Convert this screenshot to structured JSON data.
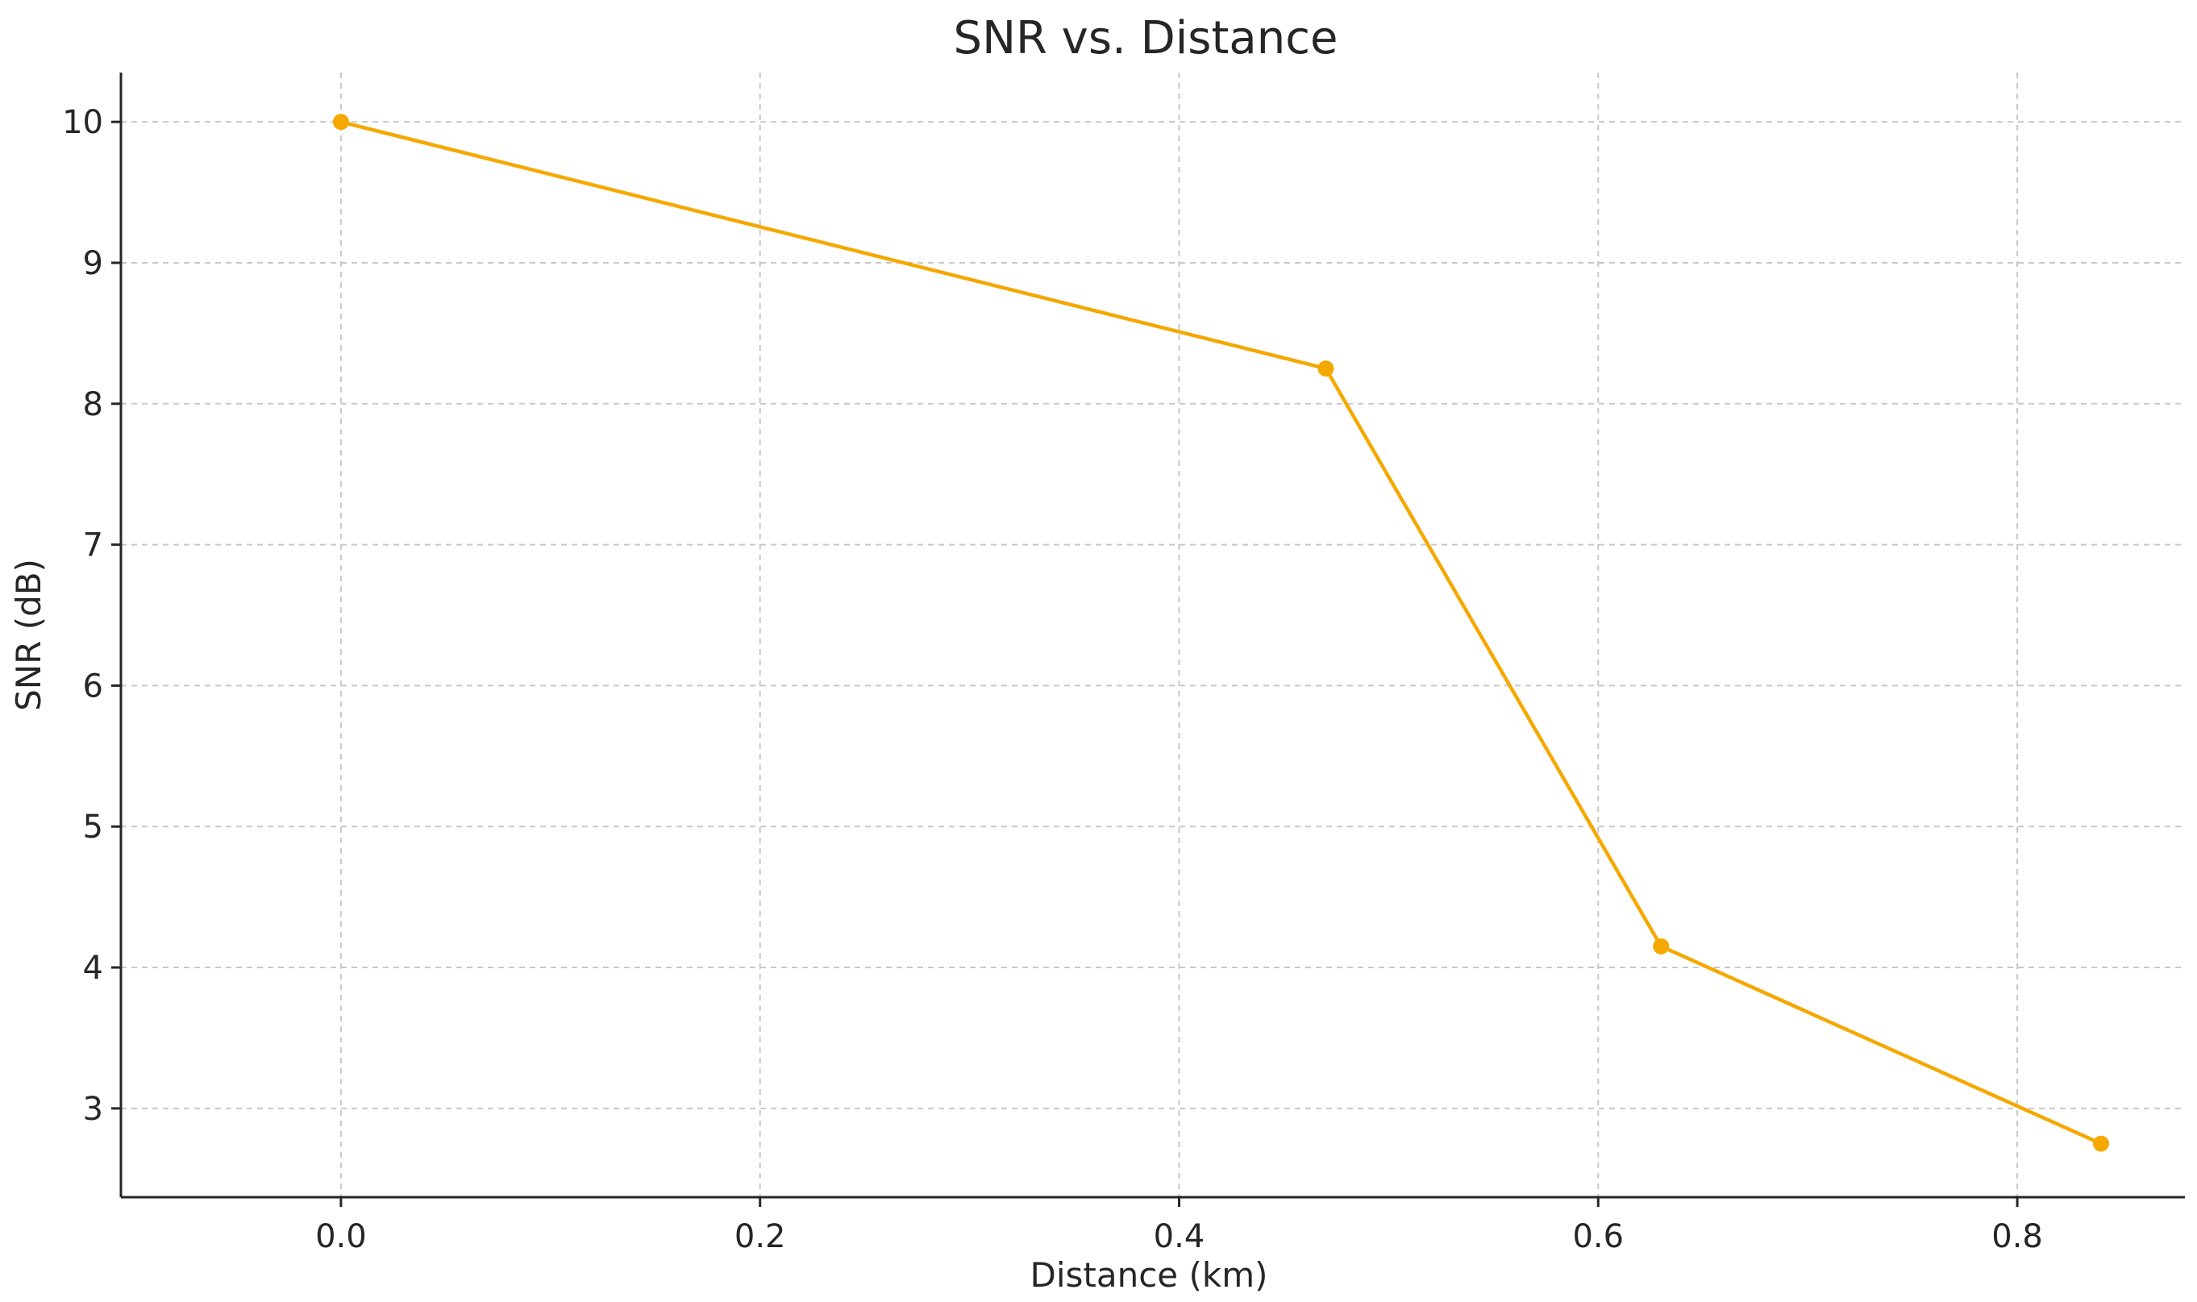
{
  "chart_data": {
    "type": "line",
    "title": "SNR vs. Distance",
    "xlabel": "Distance (km)",
    "ylabel": "SNR (dB)",
    "xlim": [
      -0.105,
      0.88
    ],
    "ylim": [
      2.37,
      10.35
    ],
    "xticks": [
      0.0,
      0.2,
      0.4,
      0.6,
      0.8
    ],
    "xtick_labels": [
      "0.0",
      "0.2",
      "0.4",
      "0.6",
      "0.8"
    ],
    "yticks": [
      3,
      4,
      5,
      6,
      7,
      8,
      9,
      10
    ],
    "ytick_labels": [
      "3",
      "4",
      "5",
      "6",
      "7",
      "8",
      "9",
      "10"
    ],
    "grid": true,
    "series": [
      {
        "color": "#f5a800",
        "marker": "circle",
        "x": [
          0.0,
          0.47,
          0.63,
          0.84
        ],
        "y": [
          10.0,
          8.25,
          4.15,
          2.75
        ]
      }
    ]
  }
}
